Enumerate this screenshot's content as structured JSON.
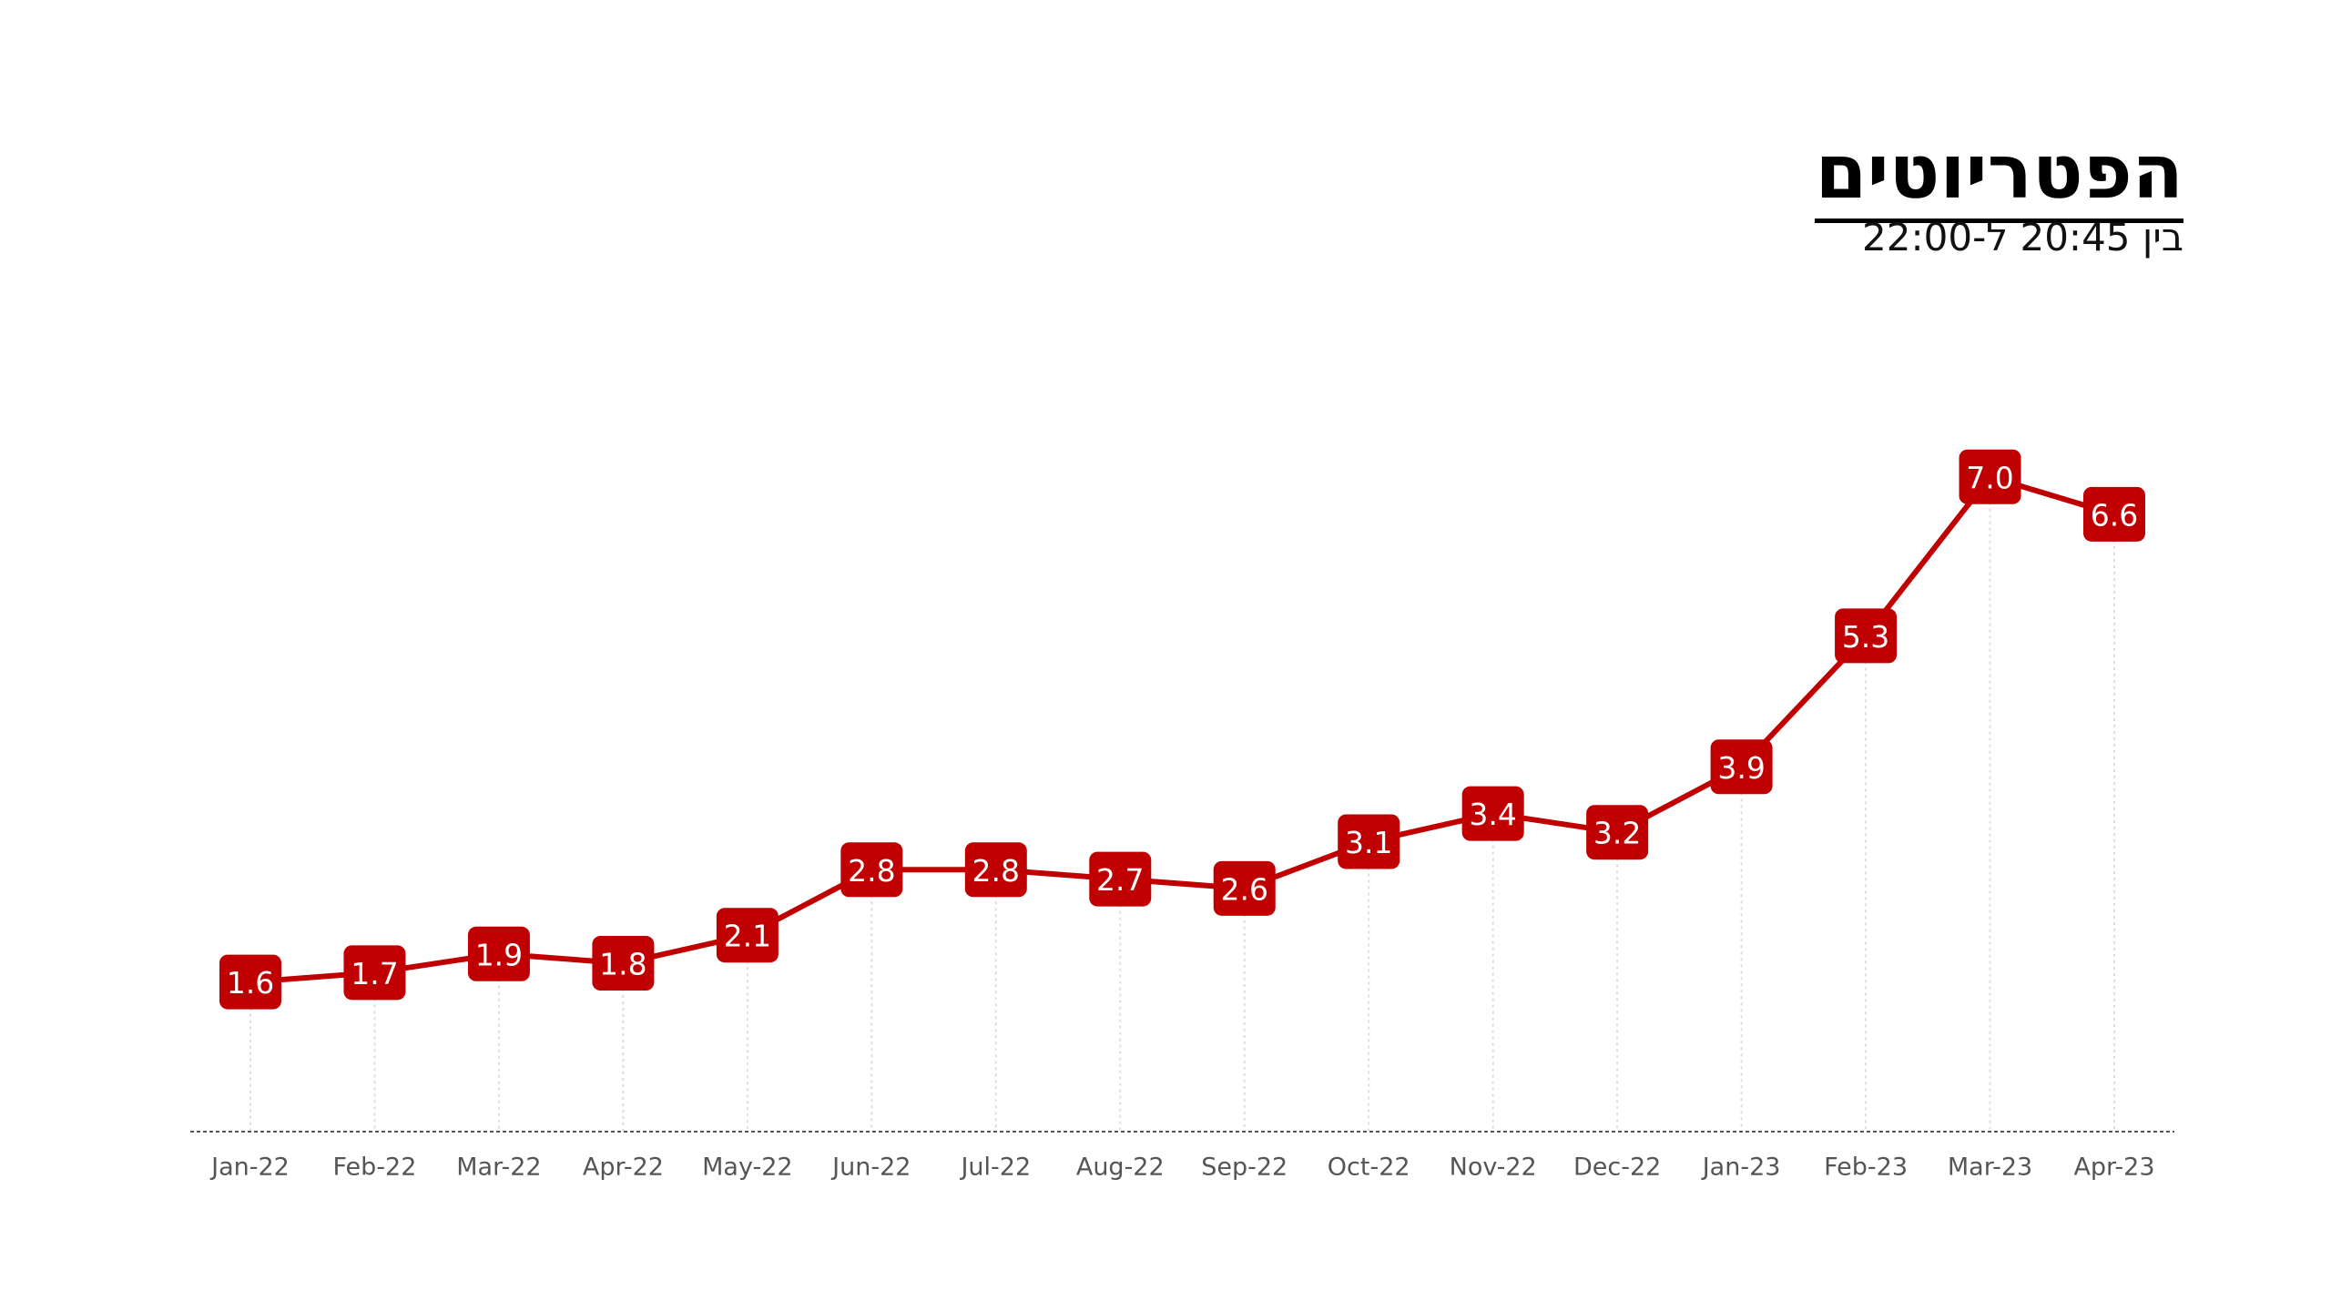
{
  "chart_data": {
    "type": "line",
    "title": "הפטריוטים",
    "subtitle": "בין 20:45 ל-22:00",
    "categories": [
      "Jan-22",
      "Feb-22",
      "Mar-22",
      "Apr-22",
      "May-22",
      "Jun-22",
      "Jul-22",
      "Aug-22",
      "Sep-22",
      "Oct-22",
      "Nov-22",
      "Dec-22",
      "Jan-23",
      "Feb-23",
      "Mar-23",
      "Apr-23"
    ],
    "series": [
      {
        "color": "#c00000",
        "values": [
          1.6,
          1.7,
          1.9,
          1.8,
          2.1,
          2.8,
          2.8,
          2.7,
          2.6,
          3.1,
          3.4,
          3.2,
          3.9,
          5.3,
          7.0,
          6.6
        ],
        "value_labels": [
          "1.6",
          "1.7",
          "1.9",
          "1.8",
          "2.1",
          "2.8",
          "2.8",
          "2.7",
          "2.6",
          "3.1",
          "3.4",
          "3.2",
          "3.9",
          "5.3",
          "7.0",
          "6.6"
        ]
      }
    ],
    "ylim": [
      0,
      8
    ]
  }
}
